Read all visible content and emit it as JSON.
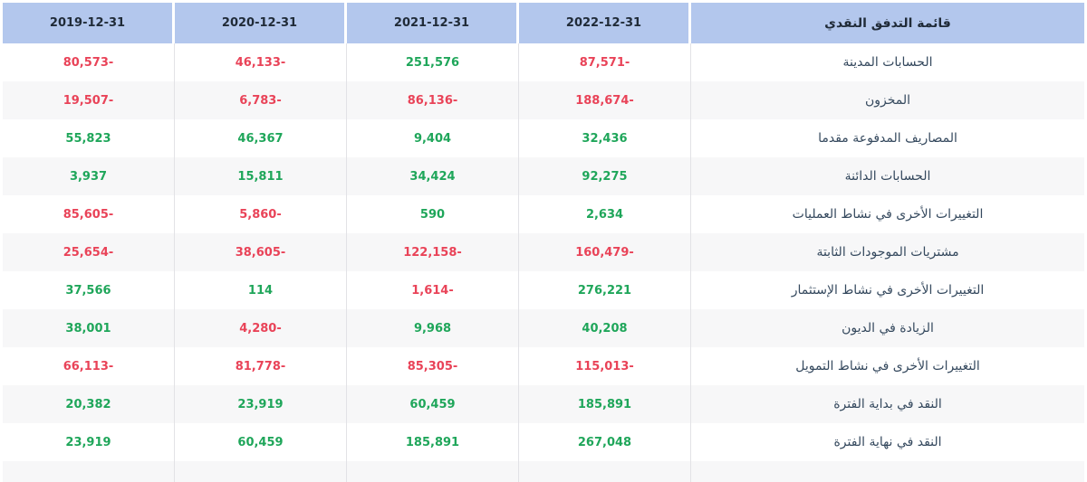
{
  "table": {
    "title_column": "قائمة التدفق النقدي",
    "columns": [
      "2019-12-31",
      "2020-12-31",
      "2021-12-31",
      "2022-12-31"
    ],
    "rows": [
      {
        "label": "الحسابات المدينة",
        "values": [
          "80,573-",
          "46,133-",
          "251,576",
          "87,571-"
        ]
      },
      {
        "label": "المخزون",
        "values": [
          "19,507-",
          "6,783-",
          "86,136-",
          "188,674-"
        ]
      },
      {
        "label": "المصاريف المدفوعة مقدما",
        "values": [
          "55,823",
          "46,367",
          "9,404",
          "32,436"
        ]
      },
      {
        "label": "الحسابات الدائنة",
        "values": [
          "3,937",
          "15,811",
          "34,424",
          "92,275"
        ]
      },
      {
        "label": "التغييرات الأخرى في نشاط العمليات",
        "values": [
          "85,605-",
          "5,860-",
          "590",
          "2,634"
        ]
      },
      {
        "label": "مشتريات الموجودات الثابتة",
        "values": [
          "25,654-",
          "38,605-",
          "122,158-",
          "160,479-"
        ]
      },
      {
        "label": "التغييرات الأخرى في نشاط الإستثمار",
        "values": [
          "37,566",
          "114",
          "1,614-",
          "276,221"
        ]
      },
      {
        "label": "الزيادة في الديون",
        "values": [
          "38,001",
          "4,280-",
          "9,968",
          "40,208"
        ]
      },
      {
        "label": "التغييرات الأخرى في نشاط التمويل",
        "values": [
          "66,113-",
          "81,778-",
          "85,305-",
          "115,013-"
        ]
      },
      {
        "label": "النقد في بداية الفترة",
        "values": [
          "20,382",
          "23,919",
          "60,459",
          "185,891"
        ]
      },
      {
        "label": "النقد في نهاية الفترة",
        "values": [
          "23,919",
          "60,459",
          "185,891",
          "267,048"
        ]
      }
    ],
    "partial_row_visible": true,
    "colors": {
      "header_bg": "#b3c7ed",
      "header_text": "#202b38",
      "label_text": "#35495e",
      "positive": "#1fa65a",
      "negative": "#e94358",
      "row_alt_bg": "#f7f7f8",
      "column_separator": "#e2e2e6"
    }
  }
}
